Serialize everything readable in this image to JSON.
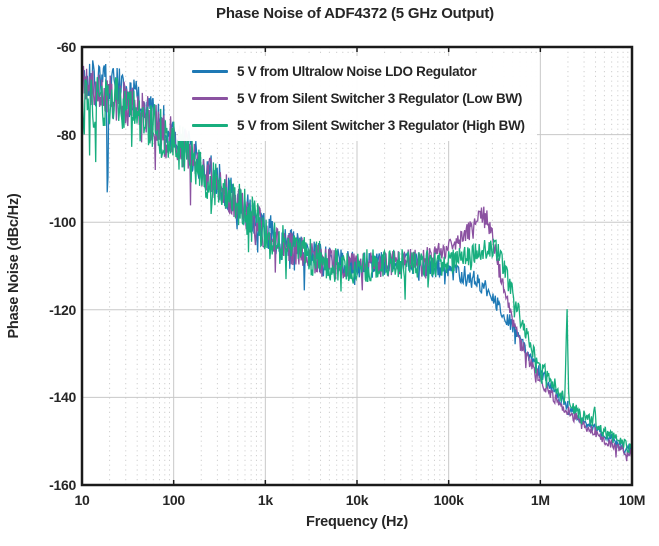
{
  "title": "Phase Noise of ADF4372 (5 GHz Output)",
  "chart_data": {
    "type": "line",
    "title": "Phase Noise of ADF4372 (5 GHz Output)",
    "xlabel": "Frequency (Hz)",
    "ylabel": "Phase Noise (dBc/Hz)",
    "x_scale": "log",
    "xlim": [
      10,
      10000000
    ],
    "ylim": [
      -160,
      -60
    ],
    "grid": {
      "major": true,
      "minor_vertical_dotted": true
    },
    "legend_position": "inside-top-left",
    "x_ticks": [
      {
        "value": 10,
        "label": "10"
      },
      {
        "value": 100,
        "label": "100"
      },
      {
        "value": 1000,
        "label": "1k"
      },
      {
        "value": 10000,
        "label": "10k"
      },
      {
        "value": 100000,
        "label": "100k"
      },
      {
        "value": 1000000,
        "label": "1M"
      },
      {
        "value": 10000000,
        "label": "10M"
      }
    ],
    "y_ticks": [
      {
        "value": -60,
        "label": "-60"
      },
      {
        "value": -80,
        "label": "-80"
      },
      {
        "value": -100,
        "label": "-100"
      },
      {
        "value": -120,
        "label": "-120"
      },
      {
        "value": -140,
        "label": "-140"
      },
      {
        "value": -160,
        "label": "-160"
      }
    ],
    "colors": {
      "text": "#262626",
      "frame": "#1a1a1a",
      "grid_major": "#c8c8c8",
      "grid_minor": "#cfcfcf"
    },
    "series": [
      {
        "name": "5 V from Ultralow Noise LDO Regulator",
        "color": "#1e79b5",
        "noise_scale": 1.0,
        "points": [
          [
            10,
            -66
          ],
          [
            15,
            -67
          ],
          [
            20,
            -68
          ],
          [
            30,
            -71
          ],
          [
            50,
            -74
          ],
          [
            70,
            -77
          ],
          [
            100,
            -80
          ],
          [
            150,
            -84
          ],
          [
            200,
            -87
          ],
          [
            300,
            -90.5
          ],
          [
            500,
            -95
          ],
          [
            700,
            -98
          ],
          [
            1000,
            -101.5
          ],
          [
            1500,
            -104
          ],
          [
            2000,
            -105.5
          ],
          [
            3000,
            -107.5
          ],
          [
            5000,
            -109
          ],
          [
            7000,
            -109.5
          ],
          [
            10000,
            -110
          ],
          [
            20000,
            -109.5
          ],
          [
            30000,
            -109
          ],
          [
            50000,
            -110
          ],
          [
            70000,
            -110.5
          ],
          [
            100000,
            -111
          ],
          [
            150000,
            -112
          ],
          [
            200000,
            -113.5
          ],
          [
            250000,
            -115
          ],
          [
            300000,
            -117
          ],
          [
            400000,
            -120.5
          ],
          [
            500000,
            -124
          ],
          [
            600000,
            -127
          ],
          [
            800000,
            -131.5
          ],
          [
            1000000,
            -134.5
          ],
          [
            1500000,
            -139.5
          ],
          [
            2000000,
            -142
          ],
          [
            3000000,
            -145.5
          ],
          [
            4000000,
            -147
          ],
          [
            5000000,
            -148.5
          ],
          [
            7000000,
            -150.5
          ],
          [
            10000000,
            -152
          ]
        ],
        "dips": [
          [
            19,
            -104
          ]
        ]
      },
      {
        "name": "5 V from Silent Switcher 3 Regulator (Low BW)",
        "color": "#8b52a1",
        "noise_scale": 1.0,
        "points": [
          [
            10,
            -69
          ],
          [
            20,
            -71
          ],
          [
            30,
            -73
          ],
          [
            50,
            -75.5
          ],
          [
            70,
            -78
          ],
          [
            100,
            -81
          ],
          [
            150,
            -84.5
          ],
          [
            200,
            -87.5
          ],
          [
            300,
            -91
          ],
          [
            500,
            -95.5
          ],
          [
            700,
            -98.5
          ],
          [
            1000,
            -102
          ],
          [
            1500,
            -104.5
          ],
          [
            2000,
            -106
          ],
          [
            3000,
            -108
          ],
          [
            5000,
            -109.5
          ],
          [
            10000,
            -110
          ],
          [
            20000,
            -109.5
          ],
          [
            30000,
            -109
          ],
          [
            50000,
            -108.5
          ],
          [
            70000,
            -107.5
          ],
          [
            100000,
            -106
          ],
          [
            130000,
            -104.5
          ],
          [
            160000,
            -102.5
          ],
          [
            200000,
            -100
          ],
          [
            230000,
            -98
          ],
          [
            260000,
            -99
          ],
          [
            300000,
            -103.5
          ],
          [
            350000,
            -109.5
          ],
          [
            400000,
            -115.5
          ],
          [
            500000,
            -123
          ],
          [
            600000,
            -127.5
          ],
          [
            800000,
            -132.5
          ],
          [
            1000000,
            -136
          ],
          [
            1500000,
            -140.5
          ],
          [
            2000000,
            -143
          ],
          [
            3000000,
            -146.5
          ],
          [
            4000000,
            -148
          ],
          [
            5000000,
            -149.5
          ],
          [
            7000000,
            -151.5
          ],
          [
            10000000,
            -153
          ]
        ],
        "dips": []
      },
      {
        "name": "5 V from Silent Switcher 3 Regulator (High BW)",
        "color": "#18ae7e",
        "noise_scale": 1.25,
        "points": [
          [
            10,
            -72
          ],
          [
            15,
            -73
          ],
          [
            20,
            -72
          ],
          [
            30,
            -74
          ],
          [
            50,
            -76.5
          ],
          [
            70,
            -79
          ],
          [
            100,
            -82
          ],
          [
            150,
            -85
          ],
          [
            200,
            -88
          ],
          [
            300,
            -91.5
          ],
          [
            500,
            -96
          ],
          [
            700,
            -99
          ],
          [
            1000,
            -102.5
          ],
          [
            1500,
            -105
          ],
          [
            2000,
            -106.5
          ],
          [
            3000,
            -108
          ],
          [
            5000,
            -109.5
          ],
          [
            10000,
            -110
          ],
          [
            20000,
            -110
          ],
          [
            30000,
            -109.5
          ],
          [
            50000,
            -109.5
          ],
          [
            70000,
            -109.5
          ],
          [
            100000,
            -109
          ],
          [
            150000,
            -108
          ],
          [
            200000,
            -107
          ],
          [
            250000,
            -106
          ],
          [
            300000,
            -105.5
          ],
          [
            350000,
            -107
          ],
          [
            400000,
            -110.5
          ],
          [
            500000,
            -116.5
          ],
          [
            600000,
            -121.5
          ],
          [
            800000,
            -128
          ],
          [
            1000000,
            -132.5
          ],
          [
            1500000,
            -138
          ],
          [
            2000000,
            -141.5
          ],
          [
            3000000,
            -144.5
          ],
          [
            4000000,
            -146.5
          ],
          [
            5000000,
            -148
          ],
          [
            7000000,
            -150
          ],
          [
            10000000,
            -151.5
          ]
        ],
        "spurs": [
          [
            1950000,
            -118
          ],
          [
            3900000,
            -142
          ]
        ]
      }
    ],
    "noise_band_pp": [
      [
        10,
        10
      ],
      [
        30,
        10
      ],
      [
        100,
        9.5
      ],
      [
        300,
        9
      ],
      [
        1000,
        8.5
      ],
      [
        3000,
        7.5
      ],
      [
        10000,
        6.5
      ],
      [
        30000,
        5.5
      ],
      [
        100000,
        4.5
      ],
      [
        300000,
        4
      ],
      [
        1000000,
        3
      ],
      [
        3000000,
        2.5
      ],
      [
        10000000,
        2.2
      ]
    ]
  }
}
